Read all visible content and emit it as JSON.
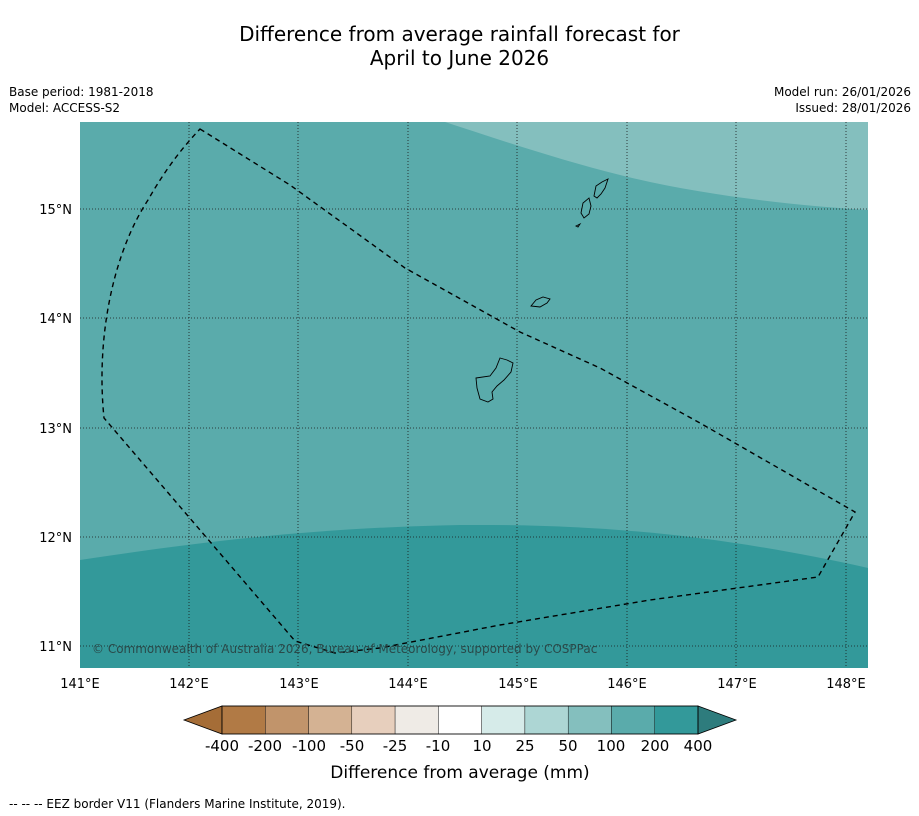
{
  "title": {
    "line1": "Difference from average rainfall forecast for",
    "line2": "April to June 2026"
  },
  "meta_left": {
    "base_period": "Base period: 1981-2018",
    "model": "Model: ACCESS-S2"
  },
  "meta_right": {
    "model_run": "Model run: 26/01/2026",
    "issued": "Issued: 28/01/2026"
  },
  "map": {
    "lon_labels": [
      "141°E",
      "142°E",
      "143°E",
      "144°E",
      "145°E",
      "146°E",
      "147°E",
      "148°E"
    ],
    "lat_labels": [
      "15°N",
      "14°N",
      "13°N",
      "12°N",
      "11°N"
    ],
    "copyright": "© Commonwealth of Australia 2026, Bureau of Meteorology, supported by COSPPac",
    "zone_colors": {
      "light": "#84bfbe",
      "mid": "#5aabab",
      "dark": "#33999a"
    },
    "land_color": "#5aabab"
  },
  "colorbar": {
    "labels": [
      "-400",
      "-200",
      "-100",
      "-50",
      "-25",
      "-10",
      "10",
      "25",
      "50",
      "100",
      "200",
      "400"
    ],
    "colors": [
      "#a56d37",
      "#b17a45",
      "#c1946b",
      "#d4b293",
      "#e7cfbd",
      "#efebe6",
      "#ffffff",
      "#d6ebe9",
      "#add6d4",
      "#84bfbe",
      "#5aabab",
      "#33999a",
      "#2e7c7d"
    ],
    "title": "Difference from average (mm)"
  },
  "footer": "--  --  -- EEZ border V11 (Flanders Marine Institute, 2019)."
}
